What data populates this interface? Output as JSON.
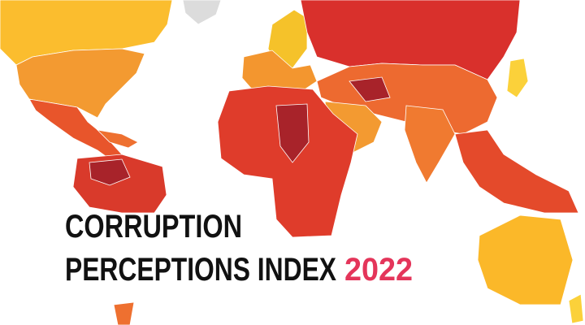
{
  "title": {
    "line1": "CORRUPTION",
    "line2": "PERCEPTIONS INDEX",
    "year": "2022"
  }
}
